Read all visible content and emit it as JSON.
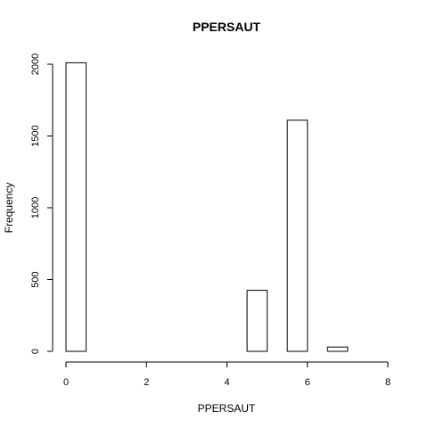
{
  "chart_data": {
    "type": "bar",
    "title": "PPERSAUT",
    "xlabel": "PPERSAUT",
    "ylabel": "Frequency",
    "bin_edges": [
      0,
      0.5,
      1,
      1.5,
      2,
      2.5,
      3,
      3.5,
      4,
      4.5,
      5,
      5.5,
      6,
      6.5,
      7,
      7.5,
      8
    ],
    "values": [
      2010,
      0,
      0,
      0,
      0,
      0,
      0,
      0,
      0,
      425,
      0,
      1610,
      0,
      30,
      0,
      0
    ],
    "xlim": [
      0,
      8
    ],
    "ylim": [
      0,
      2000
    ],
    "x_ticks": [
      "0",
      "2",
      "4",
      "6",
      "8"
    ],
    "y_ticks": [
      "0",
      "500",
      "1000",
      "1500",
      "2000"
    ],
    "grid": false
  }
}
